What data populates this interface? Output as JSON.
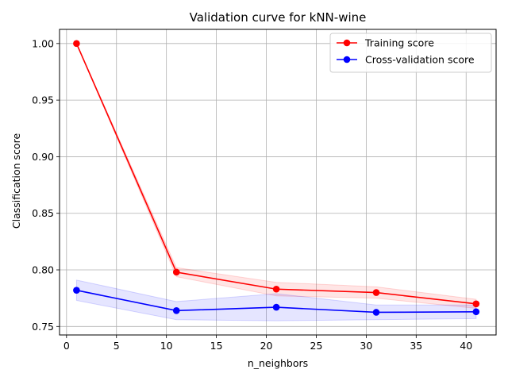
{
  "chart_data": {
    "type": "line",
    "title": "Validation curve for kNN-wine",
    "xlabel": "n_neighbors",
    "ylabel": "Classification score",
    "xlim": [
      -0.7,
      43.0
    ],
    "ylim": [
      0.7425,
      1.0125
    ],
    "xticks": [
      0,
      5,
      10,
      15,
      20,
      25,
      30,
      35,
      40
    ],
    "yticks": [
      0.75,
      0.8,
      0.85,
      0.9,
      0.95,
      1.0
    ],
    "ytick_labels": [
      "0.75",
      "0.80",
      "0.85",
      "0.90",
      "0.95",
      "1.00"
    ],
    "grid": true,
    "legend_position": "top-right",
    "x": [
      1,
      11,
      21,
      31,
      41
    ],
    "series": [
      {
        "name": "Training score",
        "color": "#ff0000",
        "band_color": "#ff0000",
        "values": [
          1.0,
          0.798,
          0.783,
          0.78,
          0.77
        ],
        "lower": [
          1.0,
          0.794,
          0.777,
          0.775,
          0.766
        ],
        "upper": [
          1.0,
          0.802,
          0.789,
          0.785,
          0.774
        ]
      },
      {
        "name": "Cross-validation score",
        "color": "#0000ff",
        "band_color": "#0000ff",
        "values": [
          0.782,
          0.764,
          0.767,
          0.7625,
          0.763
        ],
        "lower": [
          0.773,
          0.756,
          0.755,
          0.756,
          0.757
        ],
        "upper": [
          0.791,
          0.772,
          0.779,
          0.769,
          0.769
        ]
      }
    ]
  }
}
